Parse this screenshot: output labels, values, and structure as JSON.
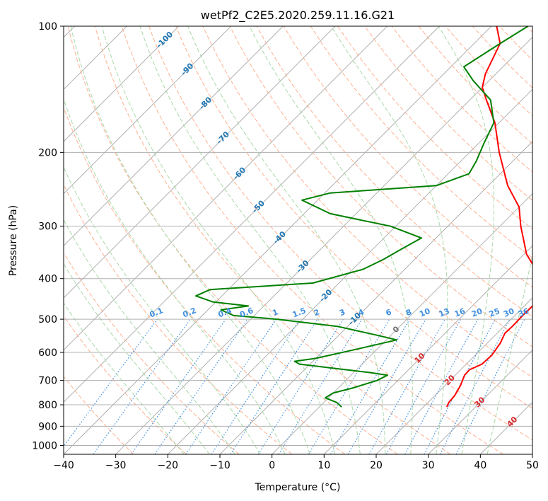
{
  "chart_data": {
    "type": "skew-t log-p",
    "title": "wetPf2_C2E5.2020.259.11.16.G21",
    "xlabel": "Temperature (°C)",
    "ylabel": "Pressure (hPa)",
    "xlim": [
      -40,
      50
    ],
    "ylim": [
      1050,
      100
    ],
    "y_scale": "log",
    "grid": true,
    "x_ticks": [
      -40,
      -30,
      -20,
      -10,
      0,
      10,
      20,
      30,
      40,
      50
    ],
    "x_tick_labels": [
      "−40",
      "−30",
      "−20",
      "−10",
      "0",
      "10",
      "20",
      "30",
      "40",
      "50"
    ],
    "y_ticks": [
      100,
      200,
      300,
      400,
      500,
      600,
      700,
      800,
      900,
      1000
    ],
    "y_tick_labels": [
      "100",
      "200",
      "300",
      "400",
      "500",
      "600",
      "700",
      "800",
      "900",
      "1000"
    ],
    "series": [
      {
        "color": "#ff0000",
        "points": [
          {
            "p": 810,
            "t": 24.5
          },
          {
            "p": 790,
            "t": 24
          },
          {
            "p": 760,
            "t": 23.8
          },
          {
            "p": 720,
            "t": 23
          },
          {
            "p": 680,
            "t": 21.8
          },
          {
            "p": 660,
            "t": 21.7
          },
          {
            "p": 640,
            "t": 23
          },
          {
            "p": 610,
            "t": 23.2
          },
          {
            "p": 570,
            "t": 22.5
          },
          {
            "p": 540,
            "t": 21.5
          },
          {
            "p": 520,
            "t": 21.6
          },
          {
            "p": 490,
            "t": 21.5
          },
          {
            "p": 460,
            "t": 21.6
          },
          {
            "p": 430,
            "t": 20.6
          },
          {
            "p": 400,
            "t": 18
          },
          {
            "p": 350,
            "t": 10.5
          },
          {
            "p": 300,
            "t": 4
          },
          {
            "p": 270,
            "t": 0
          },
          {
            "p": 240,
            "t": -6.3
          },
          {
            "p": 200,
            "t": -14.3
          },
          {
            "p": 170,
            "t": -20.8
          },
          {
            "p": 150,
            "t": -26.8
          },
          {
            "p": 140,
            "t": -30
          },
          {
            "p": 130,
            "t": -32
          },
          {
            "p": 110,
            "t": -35
          },
          {
            "p": 100,
            "t": -39
          }
        ]
      },
      {
        "color": "#008000",
        "points": [
          {
            "p": 810,
            "t": 4.3
          },
          {
            "p": 790,
            "t": 2.5
          },
          {
            "p": 770,
            "t": -0.6
          },
          {
            "p": 750,
            "t": 0
          },
          {
            "p": 730,
            "t": 2.7
          },
          {
            "p": 700,
            "t": 6
          },
          {
            "p": 680,
            "t": 7
          },
          {
            "p": 670,
            "t": 3
          },
          {
            "p": 660,
            "t": -2
          },
          {
            "p": 640,
            "t": -12
          },
          {
            "p": 630,
            "t": -13.5
          },
          {
            "p": 620,
            "t": -10
          },
          {
            "p": 590,
            "t": -4
          },
          {
            "p": 570,
            "t": 0
          },
          {
            "p": 560,
            "t": 2
          },
          {
            "p": 545,
            "t": -3
          },
          {
            "p": 520,
            "t": -12
          },
          {
            "p": 500,
            "t": -25
          },
          {
            "p": 490,
            "t": -34
          },
          {
            "p": 475,
            "t": -37.5
          },
          {
            "p": 465,
            "t": -33
          },
          {
            "p": 455,
            "t": -40.5
          },
          {
            "p": 440,
            "t": -45
          },
          {
            "p": 425,
            "t": -43.5
          },
          {
            "p": 410,
            "t": -25
          },
          {
            "p": 380,
            "t": -18
          },
          {
            "p": 360,
            "t": -16
          },
          {
            "p": 340,
            "t": -14.5
          },
          {
            "p": 320,
            "t": -12.8
          },
          {
            "p": 300,
            "t": -21
          },
          {
            "p": 280,
            "t": -35
          },
          {
            "p": 260,
            "t": -43
          },
          {
            "p": 250,
            "t": -39
          },
          {
            "p": 240,
            "t": -20
          },
          {
            "p": 225,
            "t": -16
          },
          {
            "p": 210,
            "t": -17
          },
          {
            "p": 190,
            "t": -19
          },
          {
            "p": 170,
            "t": -21
          },
          {
            "p": 150,
            "t": -26
          },
          {
            "p": 135,
            "t": -33
          },
          {
            "p": 125,
            "t": -37.5
          },
          {
            "p": 110,
            "t": -35
          },
          {
            "p": 100,
            "t": -33
          }
        ]
      }
    ],
    "background_lines": {
      "isotherm_color": "#b0b0b0",
      "dry_adiabat_color": "#ffb090",
      "moist_adiabat_color": "#a8d8a8",
      "mixing_ratio_color": "#4090e0",
      "ice_curve_color": "#e0c8a8"
    },
    "isotherm_labels": [
      {
        "t": -100,
        "p": 108,
        "text": "-100"
      },
      {
        "t": -90,
        "p": 127,
        "text": "-90"
      },
      {
        "t": -80,
        "p": 153,
        "text": "-80"
      },
      {
        "t": -70,
        "p": 185,
        "text": "-70"
      },
      {
        "t": -60,
        "p": 225,
        "text": "-60"
      },
      {
        "t": -50,
        "p": 270,
        "text": "-50"
      },
      {
        "t": -40,
        "p": 320,
        "text": "-40"
      },
      {
        "t": -30,
        "p": 375,
        "text": "-30"
      },
      {
        "t": -20,
        "p": 440,
        "text": "-20"
      },
      {
        "t": -10,
        "p": 500,
        "text": "-10"
      },
      {
        "t": 0,
        "p": 530,
        "text": "0"
      },
      {
        "t": 10,
        "p": 620,
        "text": "10"
      },
      {
        "t": 20,
        "p": 700,
        "text": "20"
      },
      {
        "t": 30,
        "p": 790,
        "text": "30"
      },
      {
        "t": 40,
        "p": 880,
        "text": "40"
      }
    ],
    "mixing_ratio_labels": [
      {
        "w": 0.1,
        "text": "0.1"
      },
      {
        "w": 0.2,
        "text": "0.2"
      },
      {
        "w": 0.4,
        "text": "0.4"
      },
      {
        "w": 0.6,
        "text": "0.6"
      },
      {
        "w": 1,
        "text": "1"
      },
      {
        "w": 1.5,
        "text": "1.5"
      },
      {
        "w": 2,
        "text": "2"
      },
      {
        "w": 3,
        "text": "3"
      },
      {
        "w": 4,
        "text": "4"
      },
      {
        "w": 6,
        "text": "6"
      },
      {
        "w": 8,
        "text": "8"
      },
      {
        "w": 10,
        "text": "10"
      },
      {
        "w": 13,
        "text": "13"
      },
      {
        "w": 16,
        "text": "16"
      },
      {
        "w": 20,
        "text": "20"
      },
      {
        "w": 25,
        "text": "25"
      },
      {
        "w": 30,
        "text": "30"
      },
      {
        "w": 36,
        "text": "36"
      }
    ],
    "mixing_ratio_label_pressure": 500
  }
}
